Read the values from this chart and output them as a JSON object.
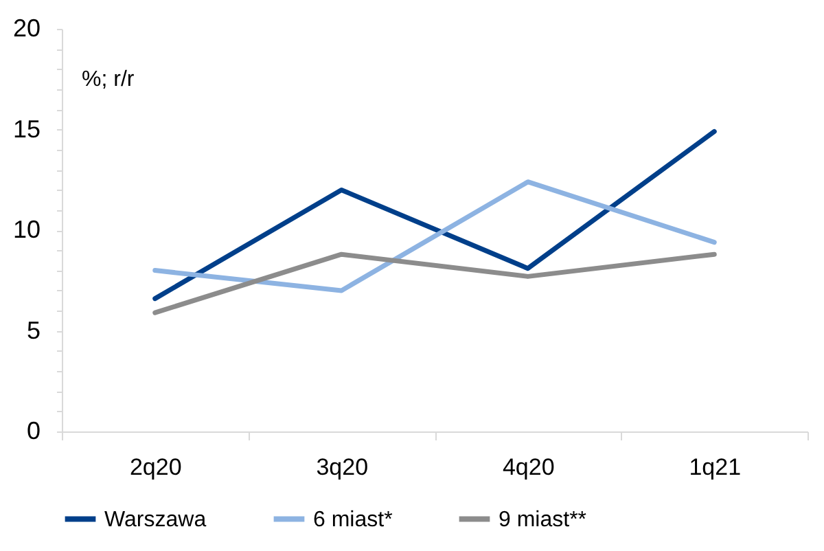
{
  "chart_data": {
    "type": "line",
    "ylabel": "%; r/r",
    "categories": [
      "2q20",
      "3q20",
      "4q20",
      "1q21"
    ],
    "series": [
      {
        "name": "Warszawa",
        "color": "#003f8a",
        "values": [
          6.6,
          12.0,
          8.1,
          14.9
        ]
      },
      {
        "name": "6 miast*",
        "color": "#8db3e2",
        "values": [
          8.0,
          7.0,
          12.4,
          9.4
        ]
      },
      {
        "name": "9 miast**",
        "color": "#8c8c8c",
        "values": [
          5.9,
          8.8,
          7.7,
          8.8
        ]
      }
    ],
    "ylim": [
      0,
      20
    ],
    "yticks": [
      0,
      {
        "value": 1,
        "label": null
      },
      {
        "value": 2,
        "label": null
      },
      {
        "value": 3,
        "label": null
      },
      {
        "value": 4,
        "label": null
      },
      5,
      {
        "value": 6,
        "label": null
      },
      {
        "value": 7,
        "label": null
      },
      {
        "value": 8,
        "label": null
      },
      {
        "value": 9,
        "label": null
      },
      10,
      {
        "value": 11,
        "label": null
      },
      {
        "value": 12,
        "label": null
      },
      {
        "value": 13,
        "label": null
      },
      {
        "value": 14,
        "label": null
      },
      15,
      {
        "value": 16,
        "label": null
      },
      {
        "value": 17,
        "label": null
      },
      {
        "value": 18,
        "label": null
      },
      {
        "value": 19,
        "label": null
      },
      20
    ],
    "legend": "bottom",
    "marker": "none",
    "line_style": "solid",
    "grid": false
  }
}
